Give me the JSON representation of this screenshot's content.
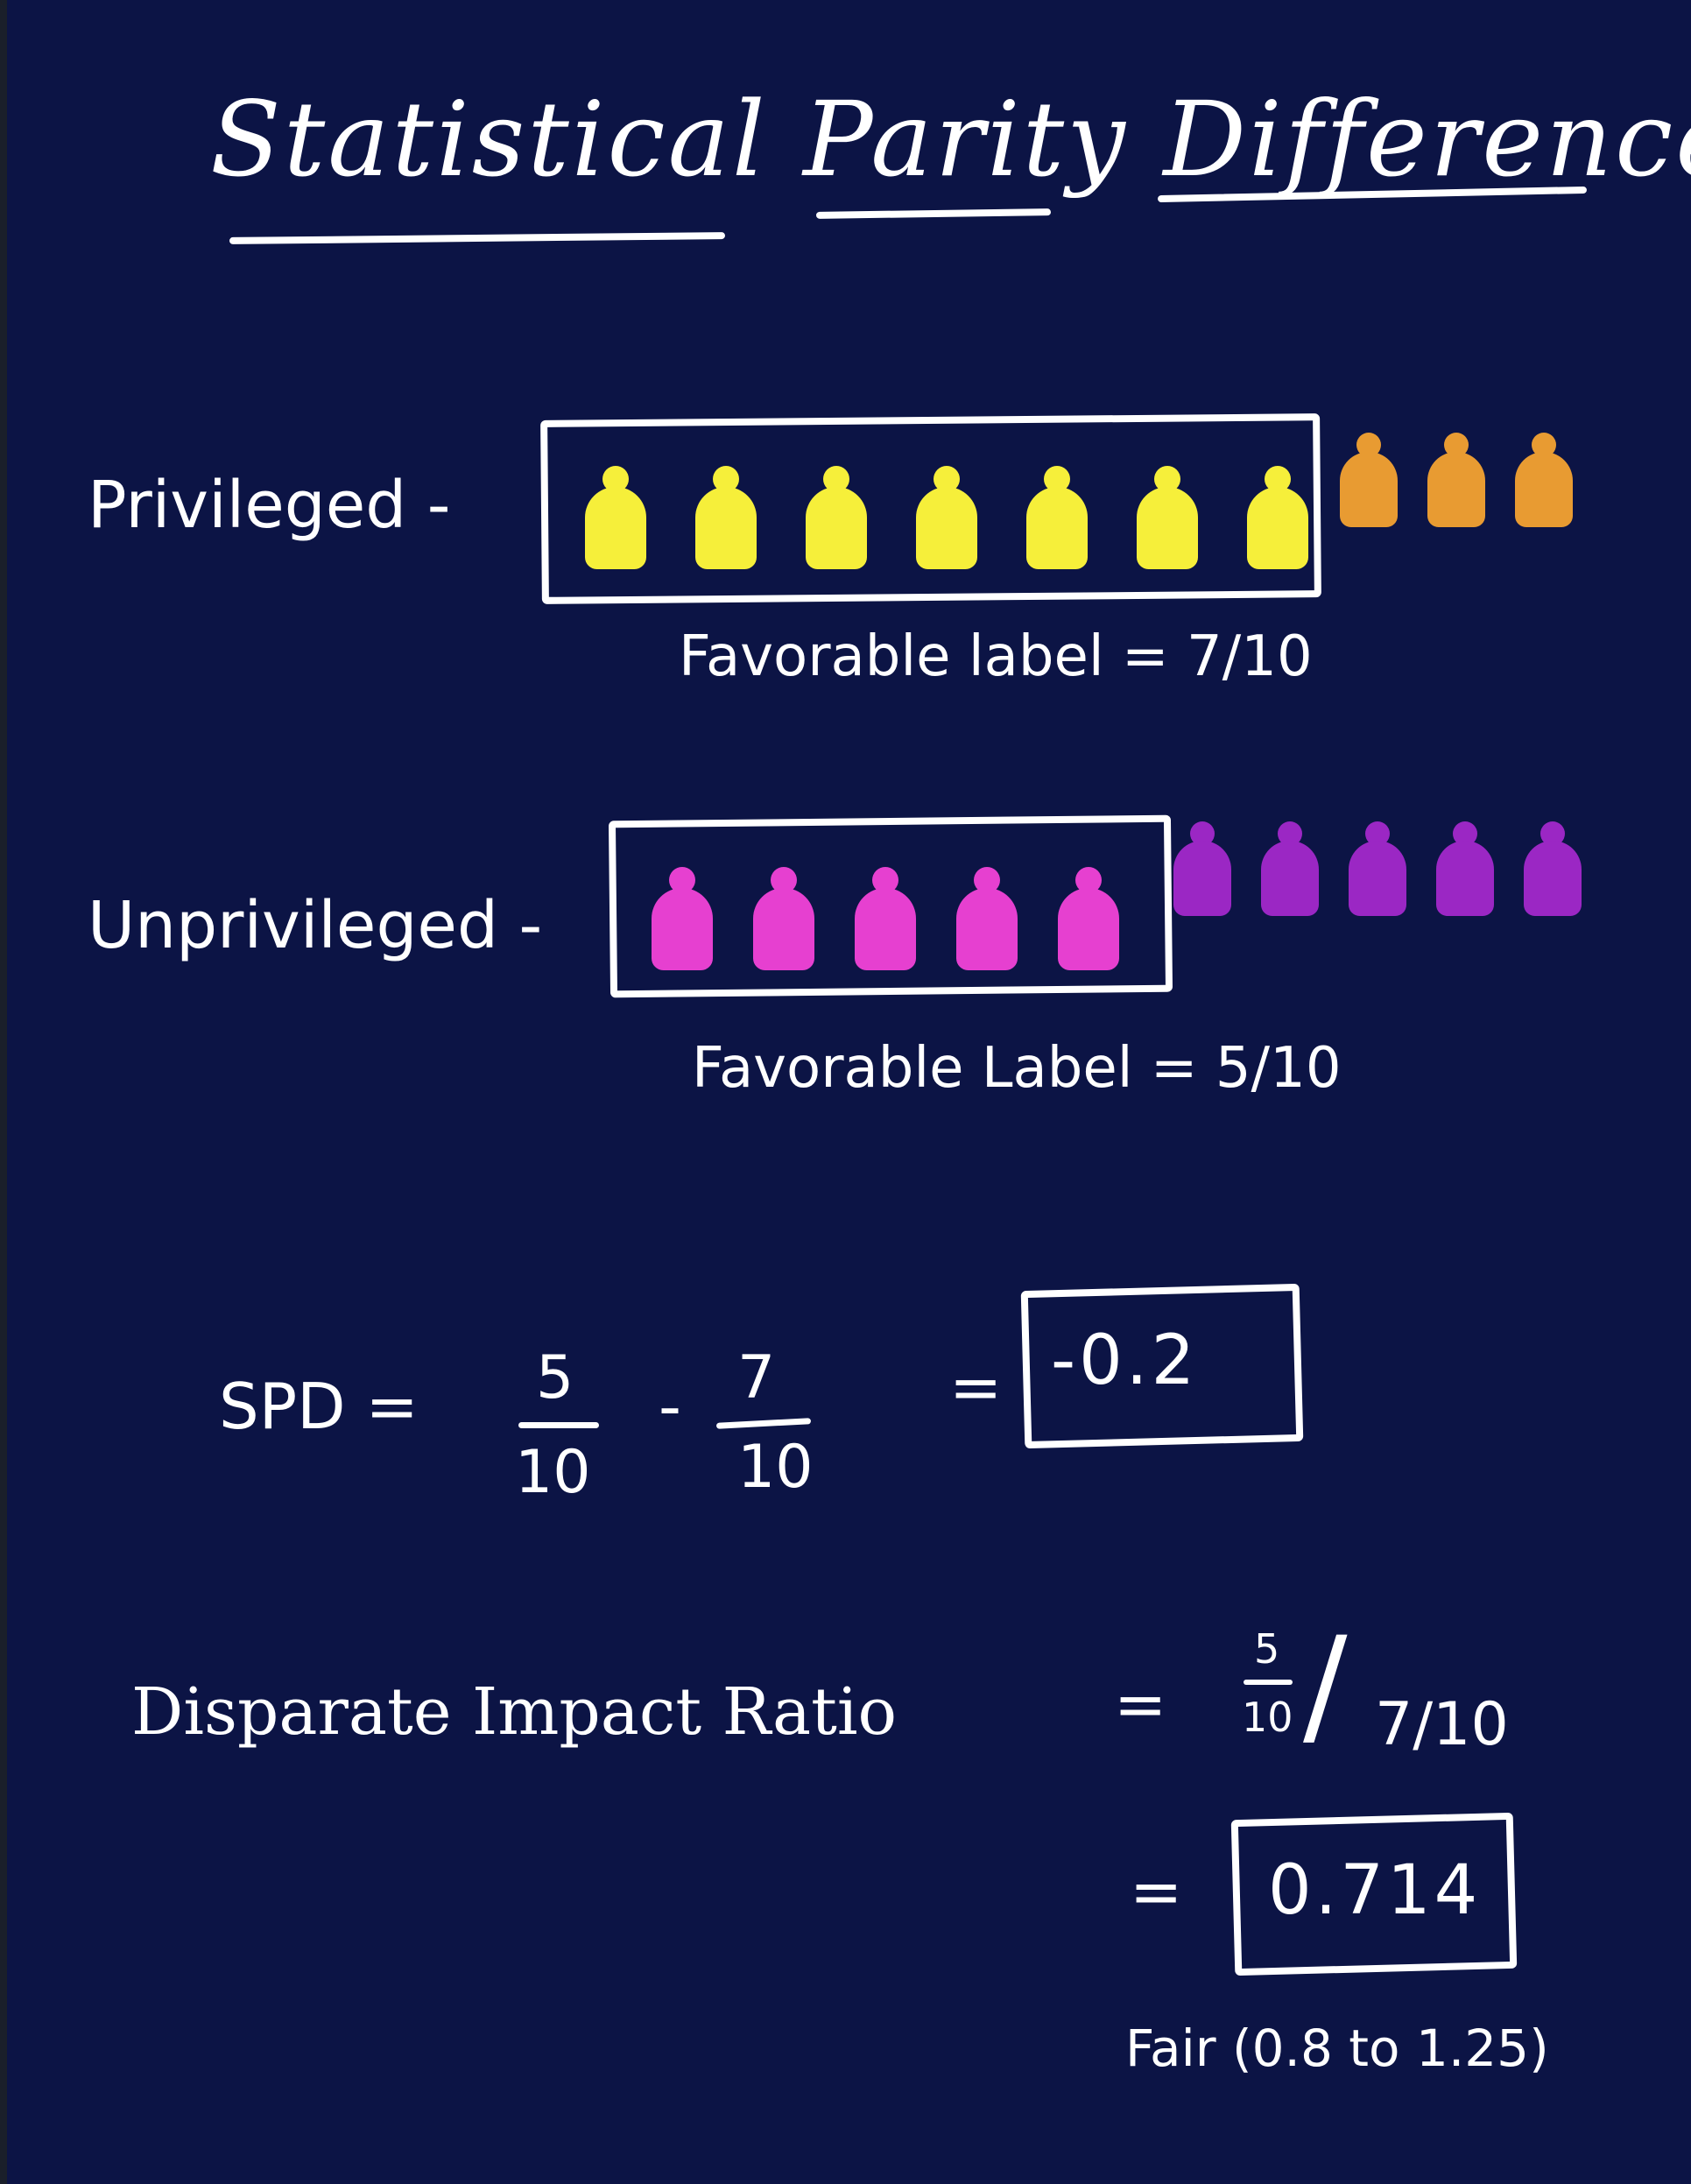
{
  "title": "Statistical Parity Difference",
  "privileged": {
    "label": "Privileged -",
    "favorable_text": "Favorable label = 7/10",
    "favorable_count": 7,
    "unfavorable_count": 3,
    "favorable_color": "#f6ef3a",
    "unfavorable_color": "#e89b32"
  },
  "unprivileged": {
    "label": "Unprivileged -",
    "favorable_text": "Favorable Label = 5/10",
    "favorable_count": 5,
    "unfavorable_count": 5,
    "favorable_color": "#e640d0",
    "unfavorable_color": "#9b27c4"
  },
  "spd": {
    "label": "SPD =",
    "num1": "5",
    "den1": "10",
    "minus": "-",
    "num2": "7",
    "den2": "10",
    "equals": "=",
    "result": "-0.2"
  },
  "dir": {
    "label": "Disparate Impact Ratio",
    "equals": "=",
    "num": "5",
    "den": "10",
    "slash": "/",
    "rhs": "7/10",
    "equals2": "=",
    "result": "0.714",
    "note": "Fair (0.8 to 1.25)"
  }
}
